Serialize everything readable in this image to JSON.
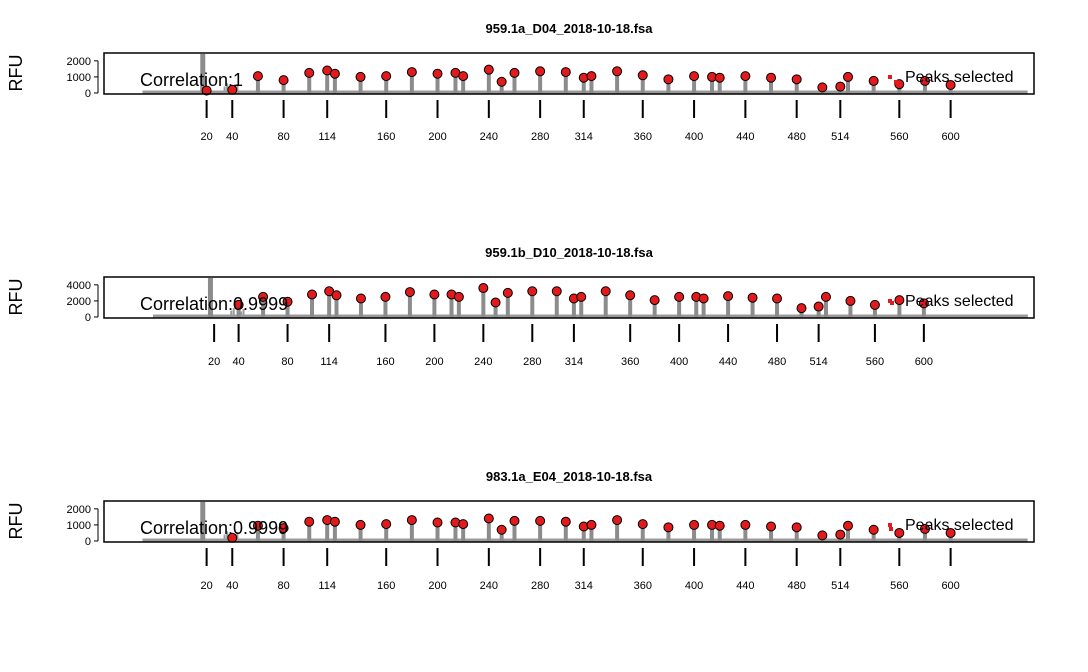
{
  "chart_data": [
    {
      "type": "bar",
      "title": "959.1a_D04_2018-10-18.fsa",
      "ylabel": "RFU",
      "yticks": [
        0,
        1000,
        2000
      ],
      "ylim": [
        0,
        2300
      ],
      "xlim": [
        -60,
        665
      ],
      "xticks": [
        20,
        40,
        80,
        114,
        160,
        200,
        240,
        280,
        314,
        360,
        400,
        440,
        480,
        514,
        560,
        600
      ],
      "correlation_label": "Correlation:1",
      "legend": "Peaks selected",
      "legend_position": "right",
      "colors": {
        "peak_line": "#8c8c8c",
        "peak_point": "#e31a1c",
        "marker": "#000000"
      },
      "peaks_x": [
        20,
        40,
        60,
        80,
        100,
        114,
        120,
        140,
        160,
        180,
        200,
        214,
        220,
        240,
        250,
        260,
        280,
        300,
        314,
        320,
        340,
        360,
        380,
        400,
        414,
        420,
        440,
        460,
        480,
        500,
        514,
        520,
        540,
        560,
        580,
        600
      ],
      "peaks_y": [
        150,
        200,
        1050,
        800,
        1250,
        1400,
        1200,
        1000,
        1050,
        1300,
        1200,
        1250,
        1050,
        1450,
        700,
        1250,
        1350,
        1300,
        950,
        1050,
        1350,
        1100,
        850,
        1050,
        1000,
        950,
        1050,
        950,
        850,
        350,
        400,
        1000,
        750,
        550,
        750,
        500
      ],
      "noise_x": [
        34,
        36,
        42,
        44
      ],
      "noise_y": [
        400,
        600,
        350,
        550
      ]
    },
    {
      "type": "bar",
      "title": "959.1b_D10_2018-10-18.fsa",
      "ylabel": "RFU",
      "yticks": [
        0,
        2000,
        4000
      ],
      "ylim": [
        0,
        4600
      ],
      "xlim": [
        -70,
        690
      ],
      "xticks": [
        20,
        40,
        80,
        114,
        160,
        200,
        240,
        280,
        314,
        360,
        400,
        440,
        480,
        514,
        560,
        600
      ],
      "correlation_label": "Correlation:0.9999",
      "legend": "Peaks selected",
      "legend_position": "right",
      "colors": {
        "peak_line": "#8c8c8c",
        "peak_point": "#e31a1c",
        "marker": "#000000"
      },
      "peaks_x": [
        40,
        60,
        80,
        100,
        114,
        120,
        140,
        160,
        180,
        200,
        214,
        220,
        240,
        250,
        260,
        280,
        300,
        314,
        320,
        340,
        360,
        380,
        400,
        414,
        420,
        440,
        460,
        480,
        500,
        514,
        520,
        540,
        560,
        580,
        600
      ],
      "peaks_y": [
        1500,
        2500,
        1900,
        2800,
        3200,
        2700,
        2300,
        2500,
        3100,
        2800,
        2800,
        2500,
        3600,
        1800,
        3000,
        3200,
        3200,
        2300,
        2500,
        3200,
        2700,
        2100,
        2500,
        2500,
        2300,
        2600,
        2400,
        2300,
        1100,
        1300,
        2500,
        2000,
        1500,
        2100,
        1700
      ],
      "noise_x": [
        34,
        36,
        42,
        44
      ],
      "noise_y": [
        800,
        1100,
        700,
        1000
      ]
    },
    {
      "type": "bar",
      "title": "983.1a_E04_2018-10-18.fsa",
      "ylabel": "RFU",
      "yticks": [
        0,
        1000,
        2000
      ],
      "ylim": [
        0,
        2300
      ],
      "xlim": [
        -60,
        665
      ],
      "xticks": [
        20,
        40,
        80,
        114,
        160,
        200,
        240,
        280,
        314,
        360,
        400,
        440,
        480,
        514,
        560,
        600
      ],
      "correlation_label": "Correlation:0.9999",
      "legend": "Peaks selected",
      "legend_position": "right",
      "colors": {
        "peak_line": "#8c8c8c",
        "peak_point": "#e31a1c",
        "marker": "#000000"
      },
      "peaks_x": [
        40,
        60,
        80,
        100,
        114,
        120,
        140,
        160,
        180,
        200,
        214,
        220,
        240,
        250,
        260,
        280,
        300,
        314,
        320,
        340,
        360,
        380,
        400,
        414,
        420,
        440,
        460,
        480,
        500,
        514,
        520,
        540,
        560,
        580,
        600
      ],
      "peaks_y": [
        200,
        950,
        800,
        1200,
        1300,
        1200,
        1000,
        1050,
        1300,
        1150,
        1150,
        1050,
        1400,
        700,
        1250,
        1250,
        1200,
        900,
        1000,
        1300,
        1050,
        850,
        1000,
        1000,
        950,
        1000,
        900,
        850,
        350,
        400,
        950,
        700,
        500,
        750,
        500
      ],
      "noise_x": [
        34,
        36,
        42,
        44
      ],
      "noise_y": [
        400,
        600,
        350,
        550
      ]
    }
  ]
}
